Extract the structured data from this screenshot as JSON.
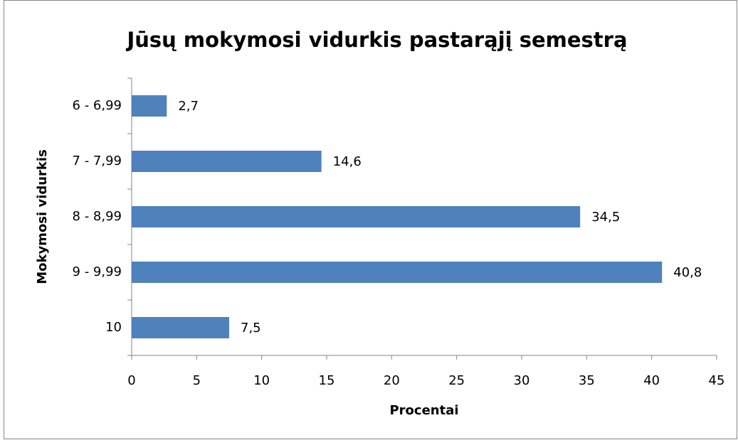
{
  "chart_data": {
    "type": "bar",
    "orientation": "horizontal",
    "title": "Jūsų mokymosi vidurkis pastarąjį semestrą",
    "x_label": "Procentai",
    "y_label": "Mokymosi vidurkis",
    "categories": [
      "6 - 6,99",
      "7 - 7,99",
      "8 - 8,99",
      "9 - 9,99",
      "10"
    ],
    "values": [
      2.7,
      14.6,
      34.5,
      40.8,
      7.5
    ],
    "value_labels": [
      "2,7",
      "14,6",
      "34,5",
      "40,8",
      "7,5"
    ],
    "color": "#4f81bd",
    "xlim": [
      0,
      45
    ],
    "xticks": [
      0,
      5,
      10,
      15,
      20,
      25,
      30,
      35,
      40,
      45
    ],
    "grid": false
  }
}
